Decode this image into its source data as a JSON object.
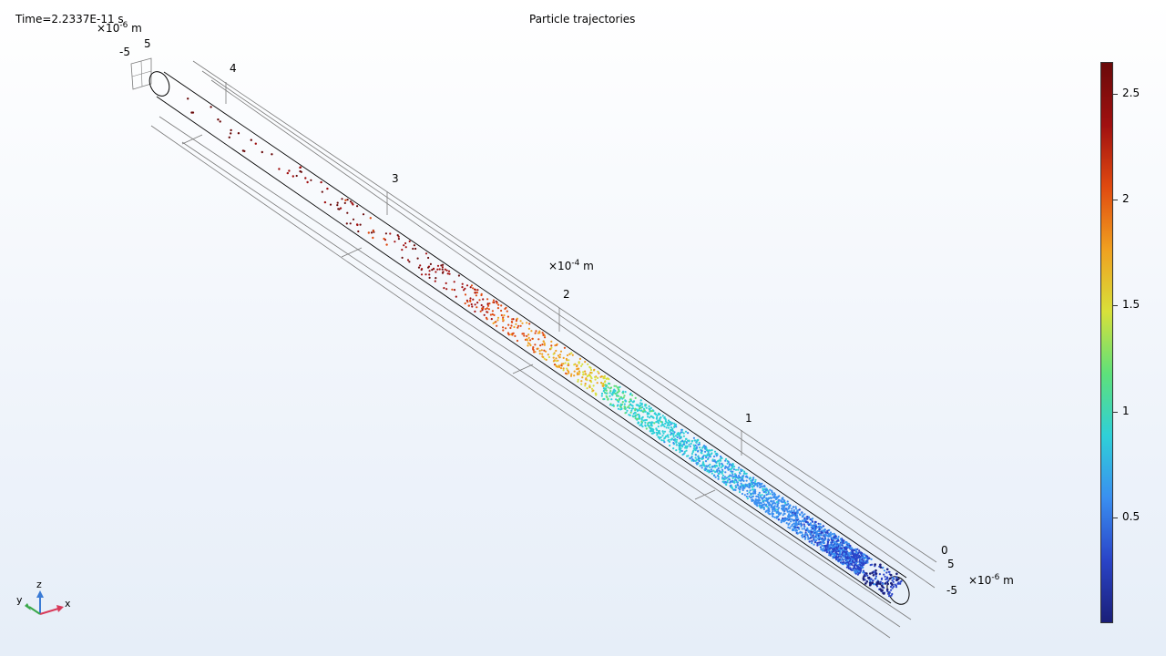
{
  "time_label": "Time=2.2337E-11 s",
  "title": "Particle trajectories",
  "units": {
    "top_left": {
      "prefix": "×10",
      "exp": "-6",
      "unit": "m"
    },
    "middle": {
      "prefix": "×10",
      "exp": "-4",
      "unit": "m"
    },
    "bottom_right": {
      "prefix": "×10",
      "exp": "-6",
      "unit": "m"
    }
  },
  "axis_tick_labels": {
    "length": [
      "4",
      "3",
      "2",
      "1",
      "0"
    ],
    "top_left_cross": [
      "5",
      "-5"
    ],
    "bottom_right_cross": [
      "5",
      "-5"
    ]
  },
  "triad": {
    "z": "z",
    "y": "y",
    "x": "x"
  },
  "colors": {
    "colormap": [
      "#1b1f78",
      "#2a44c8",
      "#3a8ff0",
      "#2fd0d8",
      "#5ee07a",
      "#d8e03a",
      "#f0a020",
      "#e04a10",
      "#a01010",
      "#6a0a0a"
    ],
    "frame": "#7a7a7a",
    "tube": "#000000"
  },
  "chart_data": {
    "type": "scatter",
    "title": "Particle trajectories",
    "subtitle": "Time=2.2337E-11 s",
    "axis_length_range_1e-4_m": [
      0,
      4.5
    ],
    "axis_cross_range_1e-6_m": [
      -5,
      5
    ],
    "colorbar": {
      "min": 0,
      "max": 2.65,
      "ticks": [
        0.5,
        1,
        1.5,
        2,
        2.5
      ],
      "tick_labels": [
        "0.5",
        "1",
        "1.5",
        "2",
        "2.5"
      ]
    },
    "grid": true,
    "legend": "colorbar-right"
  }
}
